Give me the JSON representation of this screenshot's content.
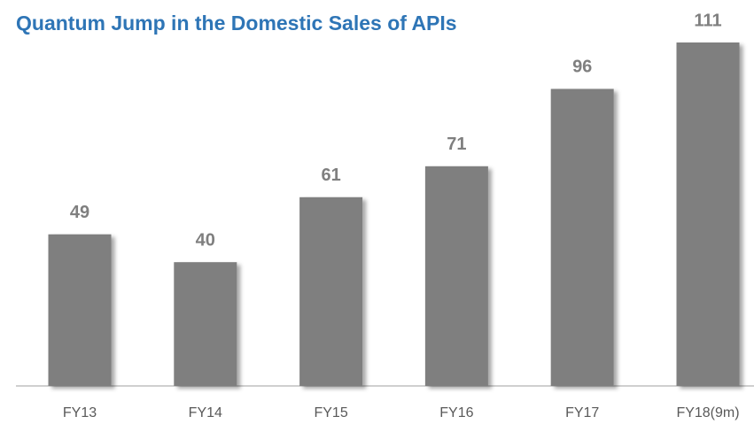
{
  "chart_data": {
    "type": "bar",
    "title": "Quantum Jump in the Domestic Sales of APIs",
    "categories": [
      "FY13",
      "FY14",
      "FY15",
      "FY16",
      "FY17",
      "FY18(9m)"
    ],
    "values": [
      49,
      40,
      61,
      71,
      96,
      111
    ],
    "color": "#7f7f7f"
  }
}
